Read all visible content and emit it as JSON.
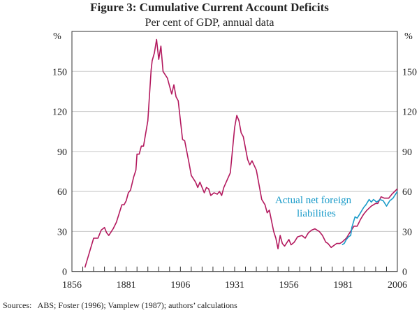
{
  "chart_data": {
    "type": "line",
    "title": "Figure 3: Cumulative Current Account Deficits",
    "subtitle": "Per cent of GDP, annual data",
    "ylabel_left": "%",
    "ylabel_right": "%",
    "xlim": [
      1856,
      2006
    ],
    "ylim": [
      0,
      180
    ],
    "x_ticks": [
      1856,
      1881,
      1906,
      1931,
      1956,
      1981,
      2006
    ],
    "y_ticks": [
      0,
      30,
      60,
      90,
      120,
      150
    ],
    "grid": true,
    "colors": {
      "cumulative": "#b3195e",
      "actual": "#1a9bc9",
      "grid": "#c8c8c8"
    },
    "series": [
      {
        "key": "cumulative",
        "x": [
          1862,
          1866,
          1868,
          1869.5,
          1871,
          1872,
          1873,
          1875,
          1876.5,
          1879,
          1880,
          1881,
          1882,
          1883,
          1884.5,
          1885.5,
          1886,
          1887,
          1888,
          1889,
          1891,
          1892.5,
          1893,
          1894,
          1895,
          1896,
          1897,
          1898,
          1900,
          1902,
          1903,
          1904,
          1905,
          1907,
          1908,
          1910,
          1911,
          1913,
          1914,
          1915,
          1917,
          1918,
          1919,
          1920,
          1921.5,
          1923,
          1924,
          1925,
          1926,
          1929,
          1931,
          1932,
          1933,
          1934,
          1935,
          1937,
          1938,
          1939,
          1941,
          1943.5,
          1945,
          1946,
          1947,
          1949,
          1950,
          1951,
          1952,
          1953,
          1954,
          1956,
          1957,
          1958.5,
          1960,
          1962,
          1963.5,
          1965,
          1966.5,
          1968,
          1970,
          1971.5,
          1973,
          1974,
          1975.5,
          1978,
          1979.5,
          1980.5,
          1982.5,
          1984,
          1986,
          1987.5,
          1989,
          1990.5,
          1992,
          1994,
          1996,
          1997,
          1998.5,
          2000,
          2002,
          2003.5,
          2006
        ],
        "values": [
          3,
          25,
          25,
          31,
          33,
          29,
          27,
          32,
          37,
          50,
          50,
          53,
          59,
          61,
          71,
          76,
          88,
          88,
          94,
          94,
          113,
          151,
          158,
          164,
          174,
          159,
          169,
          150,
          145,
          133,
          140,
          131,
          128,
          99,
          98,
          81,
          72,
          67,
          63,
          67,
          59,
          63,
          62,
          57,
          59,
          58,
          60,
          57,
          63,
          74,
          108,
          117,
          113,
          104,
          101,
          84,
          80,
          83,
          76,
          54,
          50,
          44,
          46,
          30,
          25,
          17,
          27,
          21,
          19,
          24,
          20,
          22,
          26,
          27,
          25,
          29,
          31,
          32,
          30,
          27,
          22,
          21,
          18,
          21,
          21,
          22,
          25,
          29,
          34,
          34,
          39,
          43,
          46,
          49,
          51,
          51,
          56,
          55,
          55,
          58,
          62
        ]
      },
      {
        "key": "actual",
        "name": "Actual net foreign liabilities",
        "x": [
          1980.5,
          1981.5,
          1982.5,
          1983.5,
          1984.5,
          1985,
          1986.5,
          1987.5,
          1989,
          1990.5,
          1991.5,
          1993,
          1994,
          1995,
          1996.5,
          1998,
          1999.5,
          2001,
          2002.5,
          2004,
          2006
        ],
        "values": [
          20,
          21,
          24,
          26,
          27,
          33,
          41,
          40,
          44,
          48,
          50,
          54,
          52,
          54,
          52,
          54,
          53,
          49,
          53,
          55,
          60
        ]
      }
    ],
    "annotation": {
      "line1": "Actual net foreign",
      "line2": "liabilities"
    }
  },
  "sources": "Sources:   ABS; Foster (1996); Vamplew (1987); authors’ calculations"
}
